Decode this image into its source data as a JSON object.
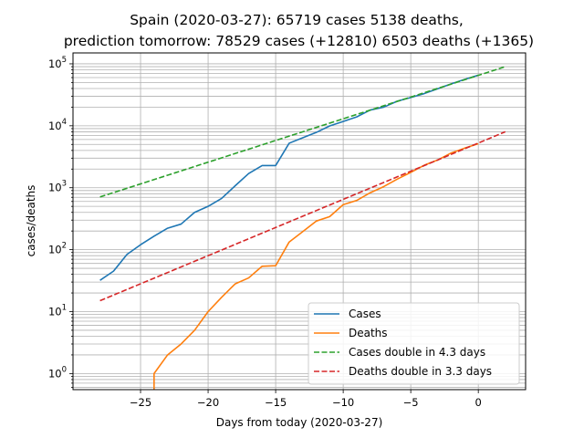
{
  "chart_data": {
    "type": "line",
    "title_line1": "Spain (2020-03-27): 65719 cases 5138 deaths,",
    "title_line2": " prediction tomorrow: 78529 cases (+12810) 6503 deaths (+1365)",
    "xlabel": "Days from today (2020-03-27)",
    "ylabel": "cases/deaths",
    "xlim": [
      -30,
      3.5
    ],
    "ylim": [
      0.55,
      150000
    ],
    "yscale": "log",
    "grid": true,
    "legend_position": "lower-right",
    "x_ticks": [
      {
        "value": -25,
        "label": "−25"
      },
      {
        "value": -20,
        "label": "−20"
      },
      {
        "value": -15,
        "label": "−15"
      },
      {
        "value": -10,
        "label": "−10"
      },
      {
        "value": -5,
        "label": "−5"
      },
      {
        "value": 0,
        "label": "0"
      }
    ],
    "y_ticks": [
      {
        "value": 1,
        "base": "10",
        "exp": "0"
      },
      {
        "value": 10,
        "base": "10",
        "exp": "1"
      },
      {
        "value": 100,
        "base": "10",
        "exp": "2"
      },
      {
        "value": 1000,
        "base": "10",
        "exp": "3"
      },
      {
        "value": 10000,
        "base": "10",
        "exp": "4"
      },
      {
        "value": 100000,
        "base": "10",
        "exp": "5"
      }
    ],
    "series": [
      {
        "name": "Cases",
        "color": "#1f77b4",
        "style": "solid",
        "x": [
          -28,
          -27,
          -26,
          -25,
          -24,
          -23,
          -22,
          -21,
          -20,
          -19,
          -18,
          -17,
          -16,
          -15,
          -14,
          -13,
          -12,
          -11,
          -10,
          -9,
          -8,
          -7,
          -6,
          -5,
          -4,
          -3,
          -2,
          -1,
          0
        ],
        "y": [
          32,
          45,
          84,
          120,
          165,
          222,
          259,
          400,
          500,
          673,
          1073,
          1695,
          2277,
          2277,
          5232,
          6391,
          7798,
          9942,
          11748,
          13910,
          17963,
          19980,
          24926,
          28572,
          33089,
          39673,
          47610,
          56188,
          65719
        ]
      },
      {
        "name": "Deaths",
        "color": "#ff7f0e",
        "style": "solid",
        "x": [
          -24,
          -24,
          -23,
          -22,
          -21,
          -20,
          -19,
          -18,
          -17,
          -16,
          -15,
          -14,
          -13,
          -12,
          -11,
          -10,
          -9,
          -8,
          -7,
          -6,
          -5,
          -4,
          -3,
          -2,
          -1,
          0
        ],
        "y": [
          0.3,
          1,
          2,
          3,
          5,
          10,
          17,
          28,
          35,
          54,
          55,
          133,
          195,
          289,
          342,
          533,
          623,
          830,
          1043,
          1375,
          1772,
          2311,
          2808,
          3647,
          4365,
          5138
        ]
      },
      {
        "name": "Cases double in 4.3 days",
        "color": "#2ca02c",
        "style": "dashed",
        "x": [
          -28,
          2
        ],
        "y": [
          710,
          90000
        ]
      },
      {
        "name": "Deaths double in 3.3 days",
        "color": "#d62728",
        "style": "dashed",
        "x": [
          -28,
          2
        ],
        "y": [
          15,
          8000
        ]
      }
    ]
  }
}
